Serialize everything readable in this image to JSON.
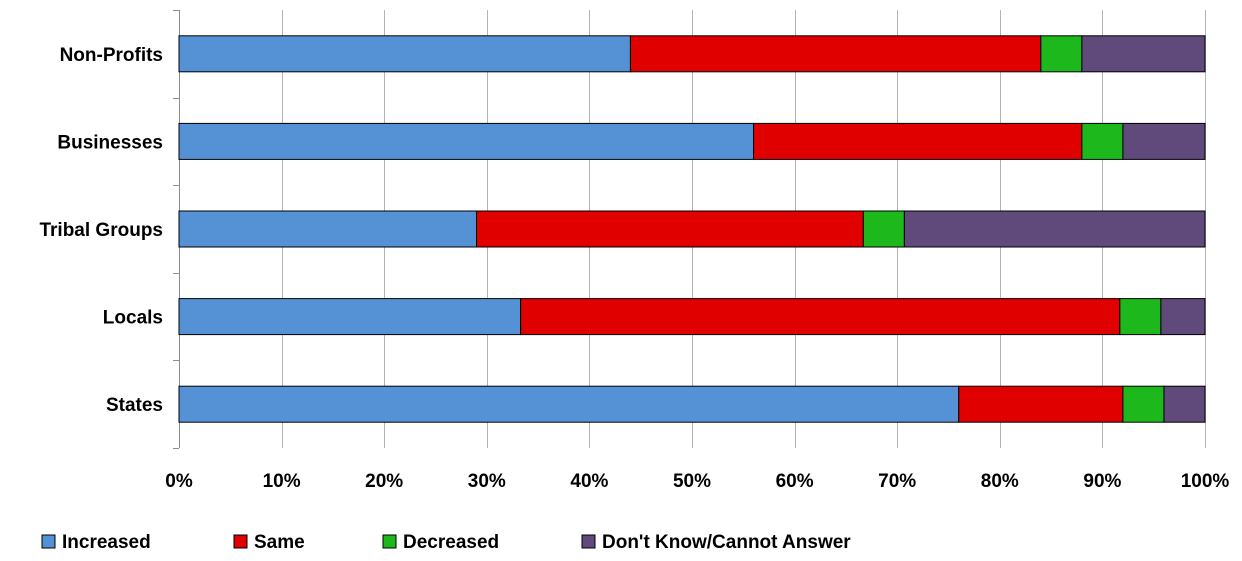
{
  "chart_data": {
    "type": "bar",
    "orientation": "horizontal",
    "stacked": true,
    "title": "",
    "xlabel": "",
    "ylabel": "",
    "categories": [
      "Non-Profits",
      "Businesses",
      "Tribal Groups",
      "Locals",
      "States"
    ],
    "series": [
      {
        "name": "Increased",
        "color": "#5591d5",
        "values": [
          44,
          56,
          29,
          33.3,
          76
        ]
      },
      {
        "name": "Same",
        "color": "#e00000",
        "values": [
          40,
          32,
          37.7,
          58.4,
          16
        ]
      },
      {
        "name": "Decreased",
        "color": "#1cb81c",
        "values": [
          4,
          4,
          4,
          4,
          4
        ]
      },
      {
        "name": "Don't Know/Cannot Answer",
        "color": "#604a7b",
        "values": [
          12,
          8,
          29.3,
          4.3,
          4
        ]
      }
    ],
    "xlim": [
      0,
      100
    ],
    "x_tick_labels": [
      "0%",
      "10%",
      "20%",
      "30%",
      "40%",
      "50%",
      "60%",
      "70%",
      "80%",
      "90%",
      "100%"
    ],
    "grid": "vertical",
    "legend_position": "bottom"
  }
}
